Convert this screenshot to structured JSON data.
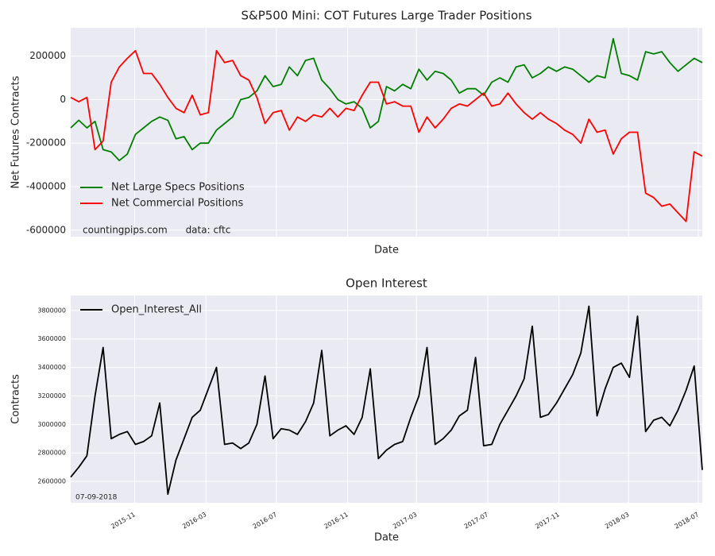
{
  "chart_data": [
    {
      "type": "line",
      "title": "S&P500 Mini: COT Futures Large Trader Positions",
      "y_label": "Net Futures Contracts",
      "x_label": "Date",
      "annotation": "countingpips.com      data: cftc",
      "legend": "lower left",
      "grid": true,
      "xlim": [
        0,
        78
      ],
      "ylim": [
        -630000,
        330000
      ],
      "yticks": [
        -600000,
        -400000,
        -200000,
        0,
        200000
      ],
      "series": [
        {
          "name": "Net Large Specs Positions",
          "color": "#008000",
          "values": [
            -130000,
            -95000,
            -130000,
            -100000,
            -230000,
            -240000,
            -280000,
            -250000,
            -160000,
            -130000,
            -100000,
            -80000,
            -95000,
            -180000,
            -170000,
            -230000,
            -200000,
            -200000,
            -140000,
            -110000,
            -80000,
            0,
            10000,
            40000,
            110000,
            60000,
            70000,
            150000,
            110000,
            180000,
            190000,
            90000,
            50000,
            0,
            -20000,
            -10000,
            -40000,
            -130000,
            -100000,
            60000,
            40000,
            70000,
            50000,
            140000,
            90000,
            130000,
            120000,
            90000,
            30000,
            50000,
            50000,
            20000,
            80000,
            100000,
            80000,
            150000,
            160000,
            100000,
            120000,
            150000,
            130000,
            150000,
            140000,
            110000,
            80000,
            110000,
            100000,
            280000,
            120000,
            110000,
            90000,
            220000,
            210000,
            220000,
            170000,
            130000,
            160000,
            190000,
            170000
          ]
        },
        {
          "name": "Net Commercial Positions",
          "color": "#ff0000",
          "values": [
            10000,
            -10000,
            10000,
            -230000,
            -190000,
            80000,
            150000,
            190000,
            225000,
            120000,
            120000,
            70000,
            10000,
            -40000,
            -60000,
            20000,
            -70000,
            -60000,
            225000,
            170000,
            180000,
            110000,
            90000,
            10000,
            -110000,
            -60000,
            -50000,
            -140000,
            -80000,
            -100000,
            -70000,
            -80000,
            -40000,
            -80000,
            -40000,
            -50000,
            20000,
            80000,
            80000,
            -20000,
            -10000,
            -30000,
            -30000,
            -150000,
            -80000,
            -130000,
            -90000,
            -40000,
            -20000,
            -30000,
            0,
            30000,
            -30000,
            -20000,
            30000,
            -20000,
            -60000,
            -90000,
            -60000,
            -90000,
            -110000,
            -140000,
            -160000,
            -200000,
            -90000,
            -150000,
            -140000,
            -250000,
            -180000,
            -150000,
            -150000,
            -430000,
            -450000,
            -490000,
            -480000,
            -520000,
            -560000,
            -240000,
            -260000
          ]
        }
      ]
    },
    {
      "type": "line",
      "title": "Open Interest",
      "y_label": "Contracts",
      "x_label": "Date",
      "annotation": "07-09-2018",
      "legend": "upper left",
      "grid": true,
      "xlim": [
        0,
        78
      ],
      "xticks": [
        {
          "value": 7.9,
          "label": "2015-11"
        },
        {
          "value": 16.7,
          "label": "2016-03"
        },
        {
          "value": 25.4,
          "label": "2016-07"
        },
        {
          "value": 34.2,
          "label": "2016-11"
        },
        {
          "value": 42.7,
          "label": "2017-03"
        },
        {
          "value": 51.5,
          "label": "2017-07"
        },
        {
          "value": 60.3,
          "label": "2017-11"
        },
        {
          "value": 68.9,
          "label": "2018-03"
        },
        {
          "value": 77.5,
          "label": "2018-07"
        }
      ],
      "ylim": [
        2450000,
        3905000
      ],
      "yticks": [
        2600000,
        2800000,
        3000000,
        3200000,
        3400000,
        3600000,
        3800000
      ],
      "series": [
        {
          "name": "Open_Interest_All",
          "color": "#000000",
          "values": [
            2630000,
            2700000,
            2780000,
            3200000,
            3540000,
            2900000,
            2930000,
            2950000,
            2860000,
            2880000,
            2920000,
            3150000,
            2510000,
            2750000,
            2900000,
            3050000,
            3100000,
            3250000,
            3400000,
            2860000,
            2870000,
            2830000,
            2870000,
            3000000,
            3340000,
            2900000,
            2970000,
            2960000,
            2930000,
            3020000,
            3150000,
            3520000,
            2920000,
            2960000,
            2990000,
            2930000,
            3050000,
            3390000,
            2760000,
            2820000,
            2860000,
            2880000,
            3050000,
            3200000,
            3540000,
            2860000,
            2900000,
            2960000,
            3060000,
            3100000,
            3470000,
            2850000,
            2860000,
            3000000,
            3100000,
            3200000,
            3320000,
            3690000,
            3050000,
            3070000,
            3150000,
            3250000,
            3350000,
            3500000,
            3830000,
            3060000,
            3250000,
            3400000,
            3430000,
            3330000,
            3760000,
            2950000,
            3030000,
            3050000,
            2990000,
            3100000,
            3240000,
            3410000,
            2680000
          ]
        }
      ]
    }
  ]
}
